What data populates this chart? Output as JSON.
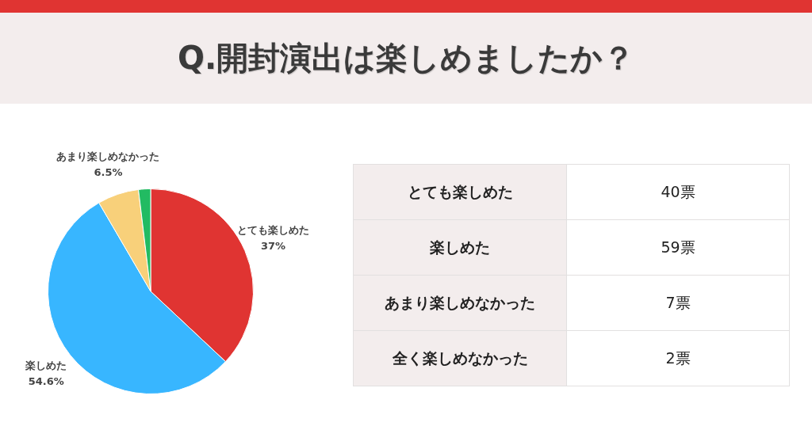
{
  "chart_data": [
    {
      "type": "pie",
      "title": "Q.開封演出は楽しめましたか？",
      "categories": [
        "とても楽しめた",
        "楽しめた",
        "あまり楽しめなかった",
        null
      ],
      "values": [
        37,
        54.6,
        6.5,
        1.9
      ],
      "value_labels": [
        "37%",
        "54.6%",
        "6.5%",
        null
      ],
      "colors": [
        "#e03432",
        "#38b6ff",
        "#f8d07a",
        "#22bb62"
      ]
    },
    {
      "type": "other",
      "categories": [
        "とても楽しめた",
        "楽しめた",
        "あまり楽しめなかった",
        "全く楽しめなかった"
      ],
      "values": [
        40,
        59,
        7,
        2
      ],
      "value_labels": [
        "40票",
        "59票",
        "7票",
        "2票"
      ]
    }
  ]
}
